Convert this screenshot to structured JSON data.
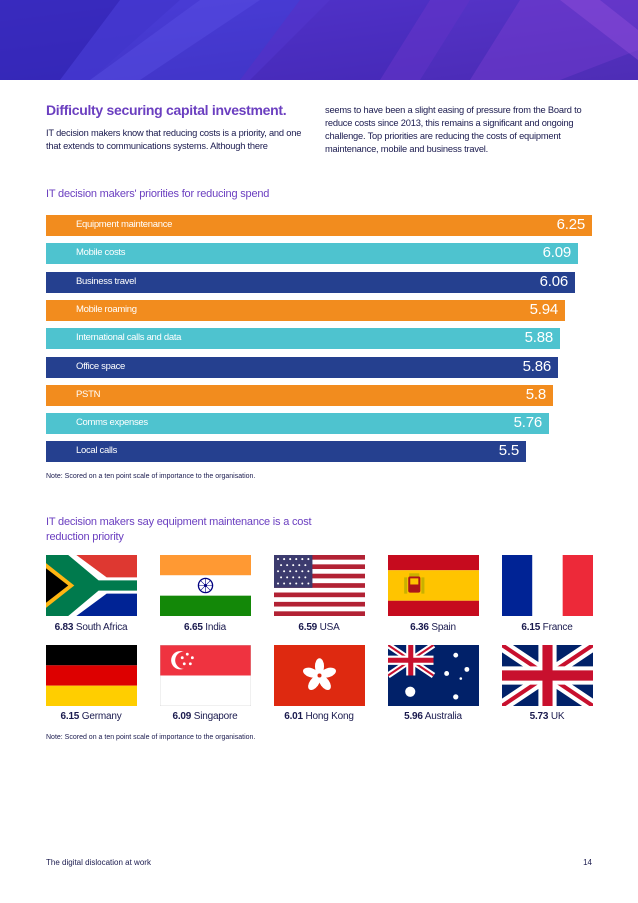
{
  "article": {
    "heading": "Difficulty securing capital investment.",
    "intro_left": "IT decision makers know that reducing costs is a priority, and one that extends to communications systems. Although there",
    "intro_right": "seems to have been a slight easing of pressure from the Board to reduce costs since 2013, this remains a significant and ongoing challenge. Top priorities are reducing the costs of equipment maintenance, mobile and business travel."
  },
  "chart_data": {
    "type": "bar",
    "orientation": "horizontal",
    "title": "IT decision makers' priorities for reducing spend",
    "categories": [
      "Equipment maintenance",
      "Mobile costs",
      "Business travel",
      "Mobile roaming",
      "International calls and data",
      "Office space",
      "PSTN",
      "Comms expenses",
      "Local calls"
    ],
    "values": [
      6.25,
      6.09,
      6.06,
      5.94,
      5.88,
      5.86,
      5.8,
      5.76,
      5.5
    ],
    "value_labels": [
      "6.25",
      "6.09",
      "6.06",
      "5.94",
      "5.88",
      "5.86",
      "5.8",
      "5.76",
      "5.5"
    ],
    "colors": [
      "#f28c1e",
      "#4ec3cf",
      "#25408f",
      "#f28c1e",
      "#4ec3cf",
      "#25408f",
      "#f28c1e",
      "#4ec3cf",
      "#25408f"
    ],
    "xlabel": "",
    "ylabel": "",
    "note": "Note: Scored on a ten point scale of importance to the organisation."
  },
  "countries": {
    "title": "IT decision makers say equipment maintenance is a cost reduction priority",
    "items": [
      {
        "score": "6.83",
        "name": "South Africa",
        "flag": "south-africa-flag"
      },
      {
        "score": "6.65",
        "name": "India",
        "flag": "india-flag"
      },
      {
        "score": "6.59",
        "name": "USA",
        "flag": "usa-flag"
      },
      {
        "score": "6.36",
        "name": "Spain",
        "flag": "spain-flag"
      },
      {
        "score": "6.15",
        "name": "France",
        "flag": "france-flag"
      },
      {
        "score": "6.15",
        "name": "Germany",
        "flag": "germany-flag"
      },
      {
        "score": "6.09",
        "name": "Singapore",
        "flag": "singapore-flag"
      },
      {
        "score": "6.01",
        "name": "Hong Kong",
        "flag": "hong-kong-flag"
      },
      {
        "score": "5.96",
        "name": "Australia",
        "flag": "australia-flag"
      },
      {
        "score": "5.73",
        "name": "UK",
        "flag": "uk-flag"
      }
    ],
    "note": "Note: Scored on a ten point scale of importance to the organisation."
  },
  "footer": {
    "title": "The digital dislocation at work",
    "page": "14"
  },
  "colors": {
    "accent_purple": "#6b3fc0",
    "banner_blue": "#3b2fbf",
    "text_navy": "#1a1a4e"
  }
}
